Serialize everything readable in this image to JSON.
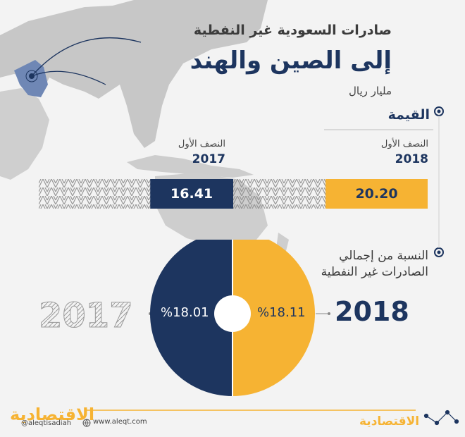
{
  "header": {
    "title_line1": "صادرات السعودية غير النفطية",
    "title_line2": "إلى الصين والهند",
    "unit": "مليار ريال"
  },
  "value_section": {
    "title": "القيمة",
    "period_2018": {
      "half_label": "النصف الأول",
      "year": "2018",
      "value": "20.20"
    },
    "period_2017": {
      "half_label": "النصف الأول",
      "year": "2017",
      "value": "16.41"
    }
  },
  "share_section": {
    "title_line1": "النسبة من إجمالي",
    "title_line2": "الصادرات غير النفطية",
    "year_2018": "2018",
    "year_2017": "2017",
    "pct_2018": "%18.11",
    "pct_2017": "%18.01"
  },
  "footer": {
    "website": "www.aleqt.com",
    "social": "@aleqtisadiah",
    "brand": "الاقتصادية"
  },
  "colors": {
    "navy": "#1d355f",
    "gold": "#f6b333",
    "background": "#f3f3f3",
    "map_gray": "#c7c7c7"
  },
  "chart_data": {
    "type": "bar",
    "categories": [
      "2018",
      "2017"
    ],
    "values": [
      20.2,
      16.41
    ],
    "share_percent": [
      18.11,
      18.01
    ]
  }
}
